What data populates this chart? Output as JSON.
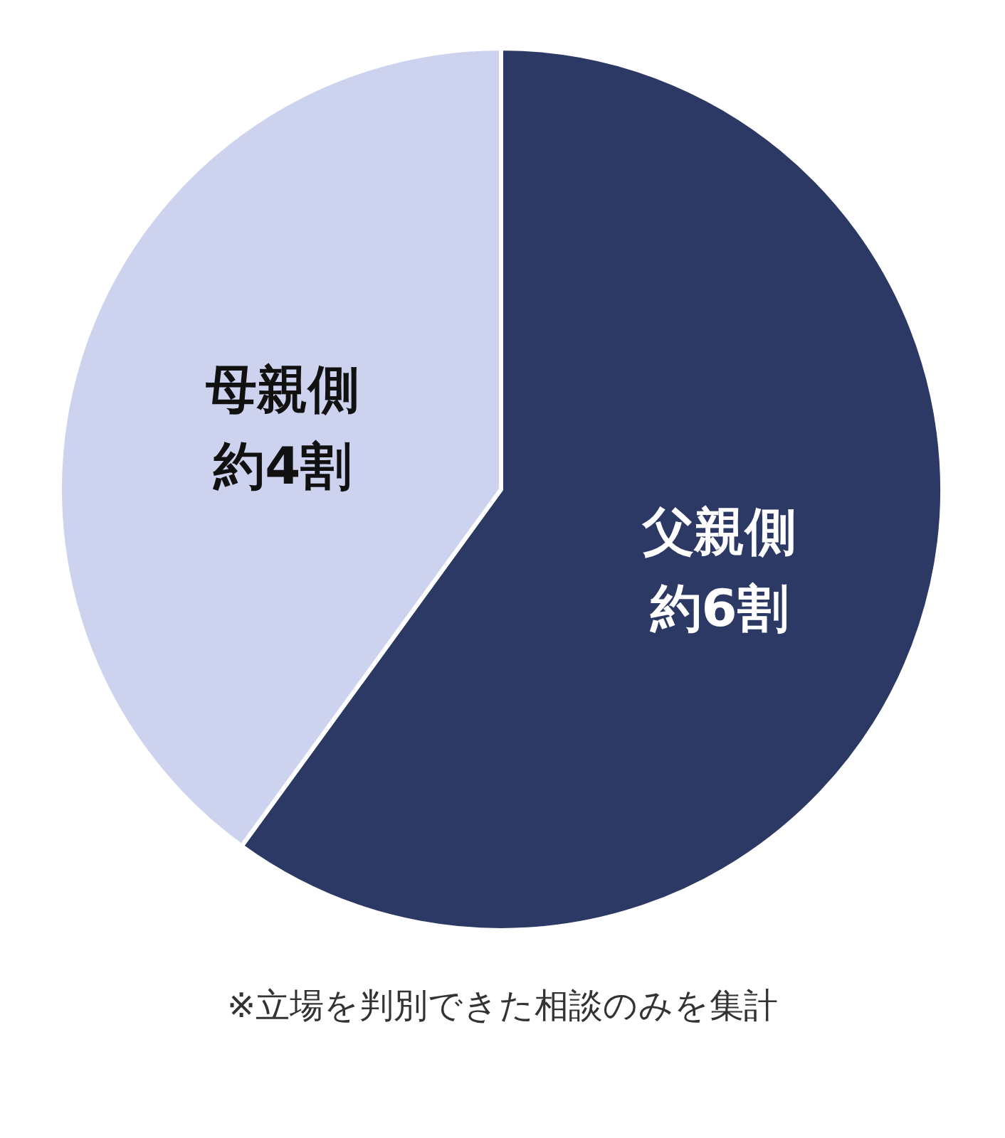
{
  "chart_data": {
    "type": "pie",
    "categories": [
      "父親側",
      "母親側"
    ],
    "values": [
      60,
      40
    ],
    "colors": [
      "#2b3964",
      "#cdd3ee"
    ],
    "value_labels": [
      "約6割",
      "約4割"
    ],
    "annotations": [
      "※立場を判別できた相談のみを集計"
    ]
  }
}
